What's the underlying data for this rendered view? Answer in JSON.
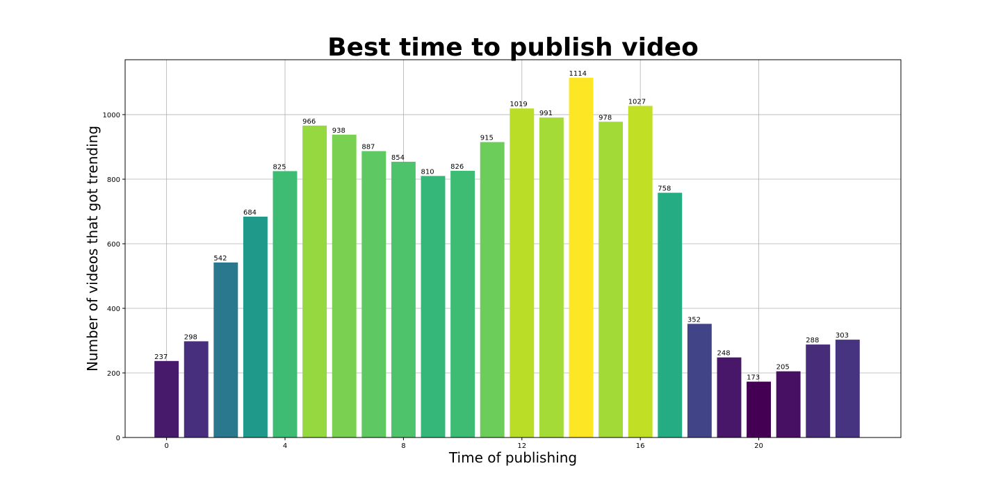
{
  "chart_data": {
    "type": "bar",
    "title": "Best time to publish video",
    "xlabel": "Time of publishing",
    "ylabel": "Number of videos that got trending",
    "x": [
      0,
      1,
      2,
      3,
      4,
      5,
      6,
      7,
      8,
      9,
      10,
      11,
      12,
      13,
      14,
      15,
      16,
      17,
      18,
      19,
      20,
      21,
      22,
      23
    ],
    "values": [
      237,
      298,
      542,
      684,
      825,
      966,
      938,
      887,
      854,
      810,
      826,
      915,
      1019,
      991,
      1114,
      978,
      1027,
      758,
      352,
      248,
      173,
      205,
      288,
      303
    ],
    "colors": [
      "#481a6c",
      "#472f7d",
      "#2a788e",
      "#1f9a8a",
      "#3fbc73",
      "#95d840",
      "#7ad151",
      "#5ec962",
      "#4ec36b",
      "#35b779",
      "#3fbc73",
      "#6ccd5a",
      "#bade28",
      "#a5db36",
      "#fde725",
      "#a2da37",
      "#c0df25",
      "#25ac82",
      "#414487",
      "#481769",
      "#440154",
      "#471063",
      "#472c7a",
      "#463480"
    ],
    "xticks": [
      0,
      4,
      8,
      12,
      16,
      20
    ],
    "yticks": [
      0,
      200,
      400,
      600,
      800,
      1000
    ],
    "xlim": [
      -1.4,
      24.8
    ],
    "ylim": [
      0,
      1170
    ],
    "grid": true
  }
}
